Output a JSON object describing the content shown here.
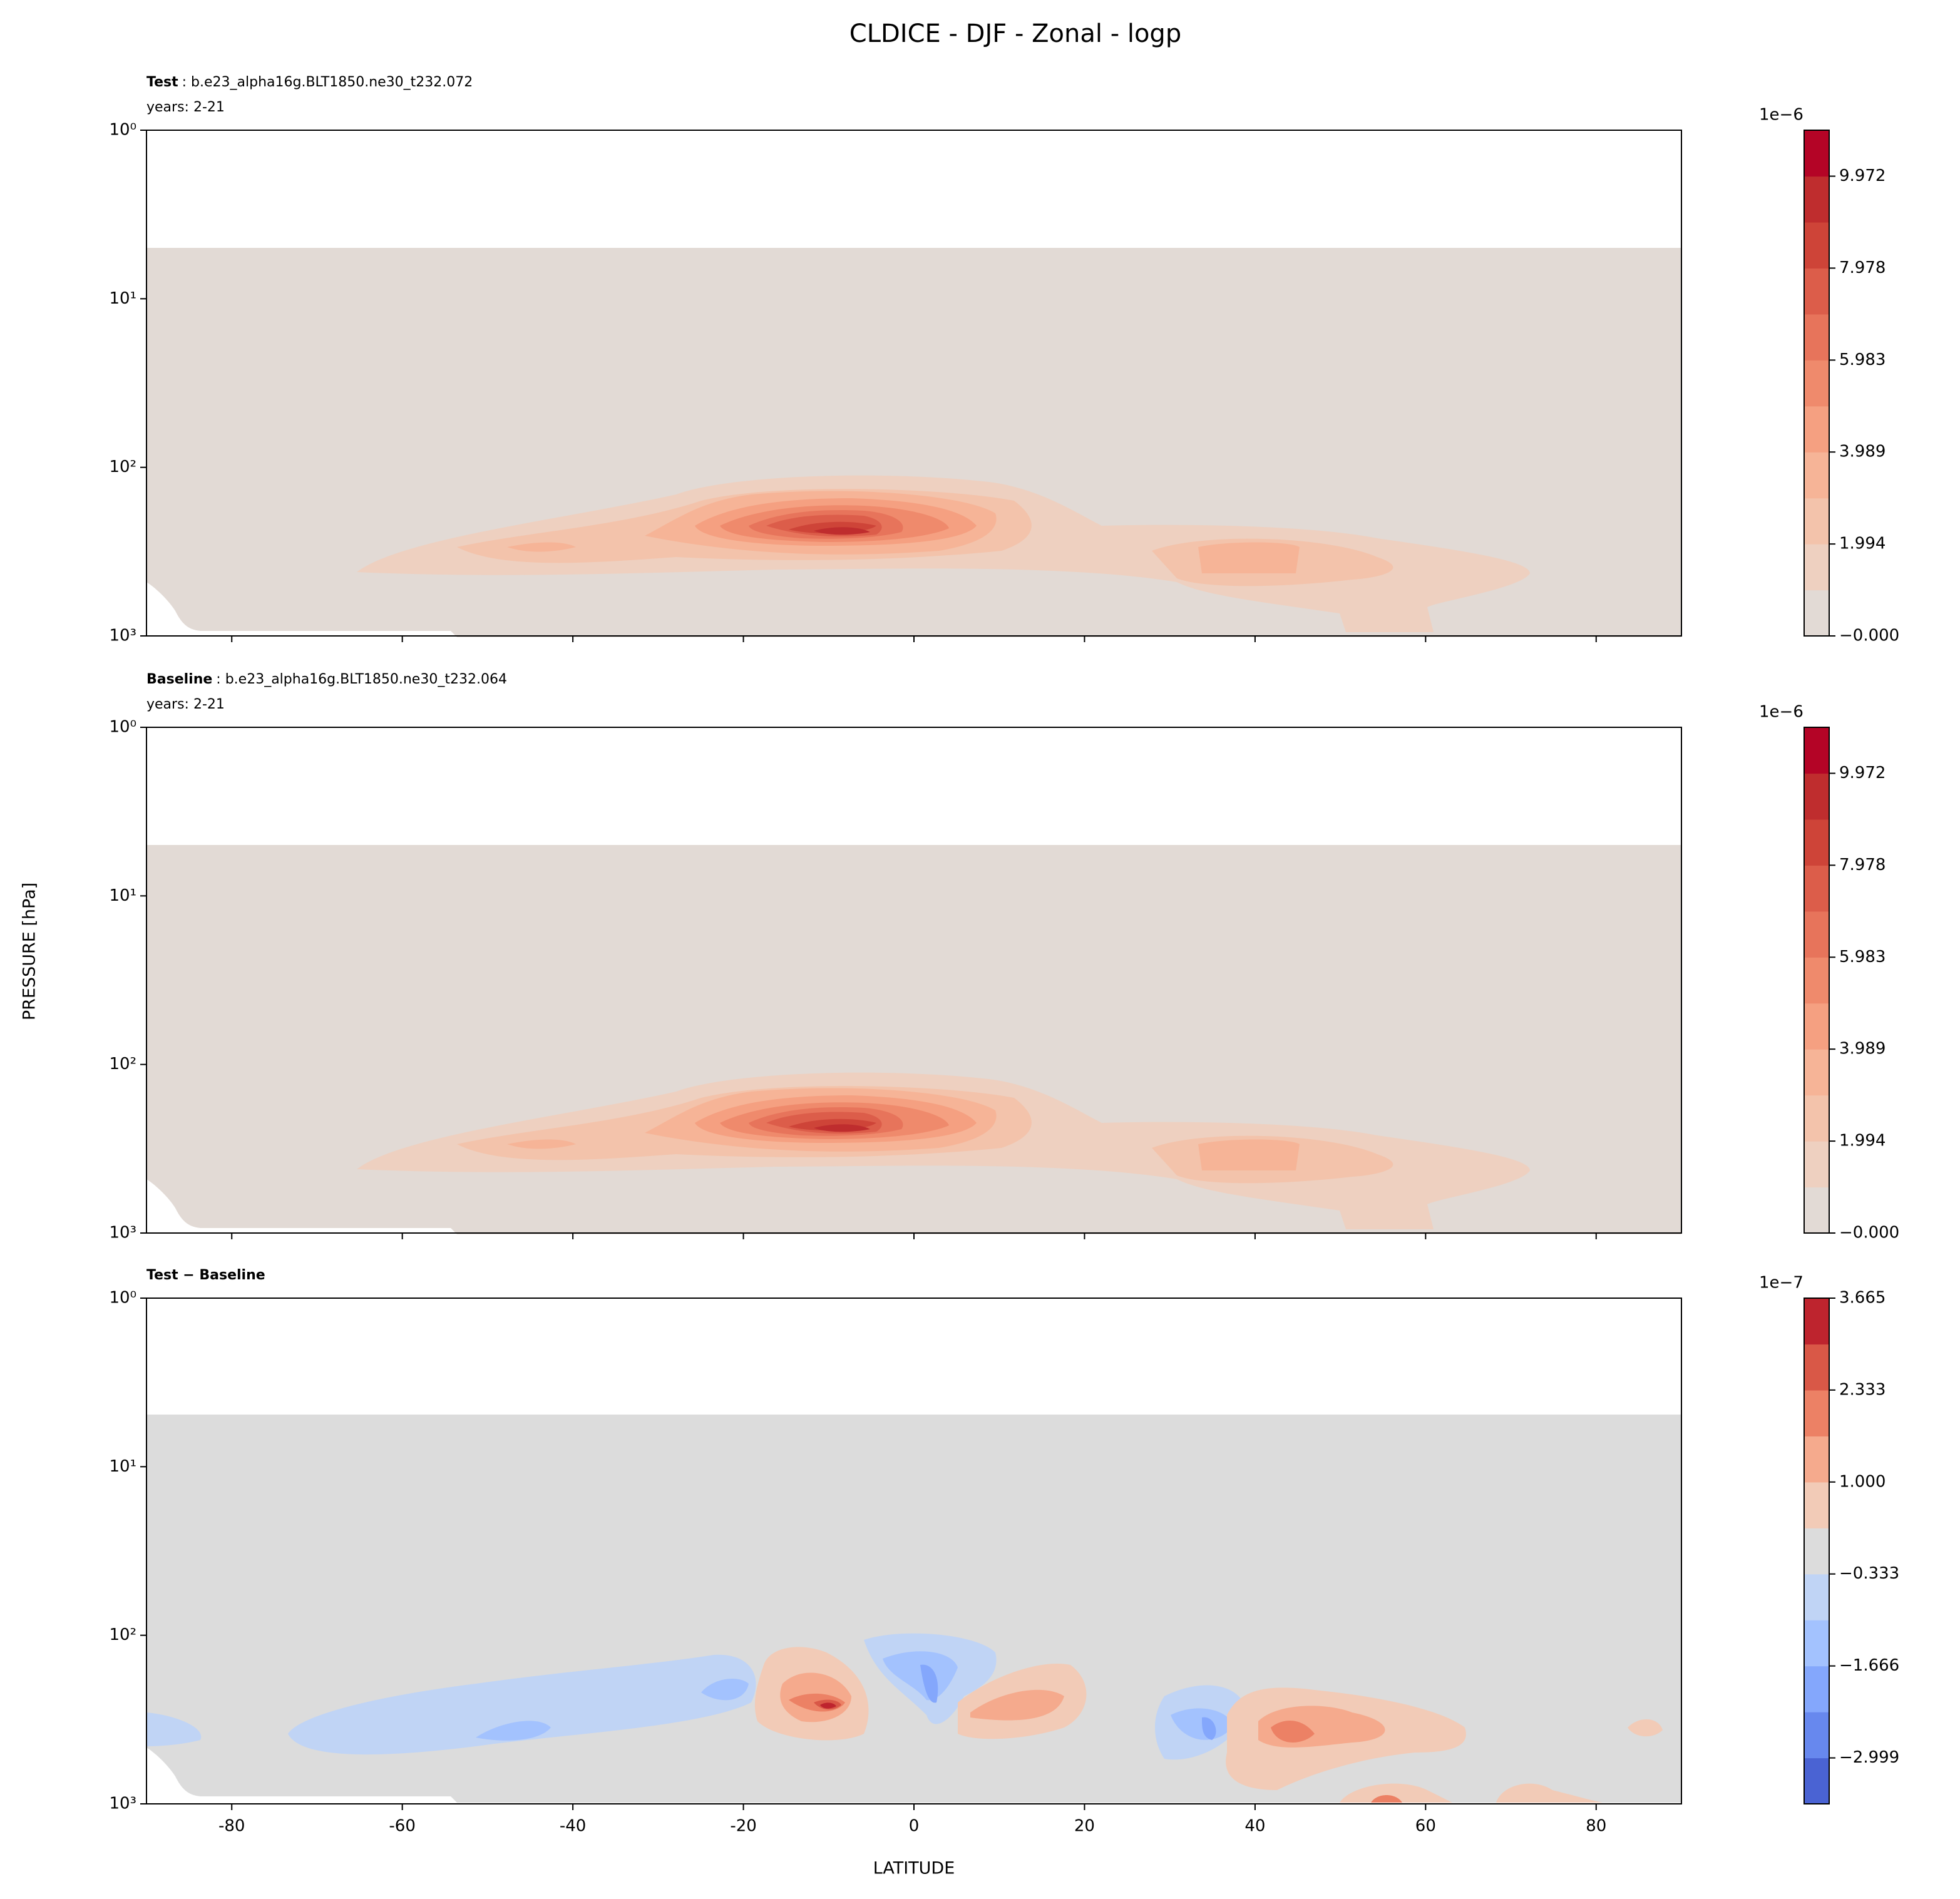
{
  "title": "CLDICE - DJF - Zonal - logp",
  "xlabel": "LATITUDE",
  "ylabel": "PRESSURE [hPa]",
  "chart_data": [
    {
      "type": "contour",
      "title_bold": "Test",
      "title": ": b.e23_alpha16g.BLT1850.ne30_t232.072",
      "subtitle": "years: 2-21",
      "xlim": [
        -90,
        90
      ],
      "xticks": [
        -80,
        -60,
        -40,
        -20,
        0,
        20,
        40,
        60,
        80
      ],
      "show_xticklabels": false,
      "ylim": [
        1000,
        1
      ],
      "log_y": true,
      "yticks": [
        {
          "value": 1,
          "label": "10⁰"
        },
        {
          "value": 10,
          "label": "10¹"
        },
        {
          "value": 100,
          "label": "10²"
        },
        {
          "value": 1000,
          "label": "10³"
        }
      ],
      "colorbar": {
        "offset_label": "1e−6",
        "clim": [
          0,
          10.97
        ],
        "ticks": [
          {
            "value": 0,
            "label": "−0.000"
          },
          1.994,
          3.989,
          5.983,
          7.978,
          9.972
        ],
        "colors": [
          "#e2dad5",
          "#eed0c0",
          "#f3c3ab",
          "#f6b497",
          "#f5a081",
          "#ef8a6c",
          "#e7745b",
          "#dc5d4a",
          "#ce4438",
          "#bf2d2e",
          "#b40426"
        ]
      }
    },
    {
      "type": "contour",
      "title_bold": "Baseline",
      "title": ": b.e23_alpha16g.BLT1850.ne30_t232.064",
      "subtitle": "years: 2-21",
      "xlim": [
        -90,
        90
      ],
      "xticks": [
        -80,
        -60,
        -40,
        -20,
        0,
        20,
        40,
        60,
        80
      ],
      "show_xticklabels": false,
      "ylim": [
        1000,
        1
      ],
      "log_y": true,
      "yticks": [
        {
          "value": 1,
          "label": "10⁰"
        },
        {
          "value": 10,
          "label": "10¹"
        },
        {
          "value": 100,
          "label": "10²"
        },
        {
          "value": 1000,
          "label": "10³"
        }
      ],
      "colorbar": {
        "offset_label": "1e−6",
        "clim": [
          0,
          10.97
        ],
        "ticks": [
          {
            "value": 0,
            "label": "−0.000"
          },
          1.994,
          3.989,
          5.983,
          7.978,
          9.972
        ],
        "colors": [
          "#e2dad5",
          "#eed0c0",
          "#f3c3ab",
          "#f6b497",
          "#f5a081",
          "#ef8a6c",
          "#e7745b",
          "#dc5d4a",
          "#ce4438",
          "#bf2d2e",
          "#b40426"
        ]
      }
    },
    {
      "type": "contour",
      "title_bold": "Test − Baseline",
      "xlim": [
        -90,
        90
      ],
      "xticks": [
        -80,
        -60,
        -40,
        -20,
        0,
        20,
        40,
        60,
        80
      ],
      "show_xticklabels": true,
      "ylim": [
        1000,
        1
      ],
      "log_y": true,
      "yticks": [
        {
          "value": 1,
          "label": "10⁰"
        },
        {
          "value": 10,
          "label": "10¹"
        },
        {
          "value": 100,
          "label": "10²"
        },
        {
          "value": 1000,
          "label": "10³"
        }
      ],
      "colorbar": {
        "offset_label": "1e−7",
        "clim": [
          -3.665,
          3.665
        ],
        "ticks": [
          -2.999,
          -1.666,
          -0.333,
          1.0,
          2.333,
          3.665
        ],
        "tick_labels": [
          "−2.999",
          "−1.666",
          "−0.333",
          "1.000",
          "2.333",
          "3.665"
        ],
        "colors": [
          "#4a63d3",
          "#6788ee",
          "#84a7fc",
          "#a3c2fe",
          "#c0d4f5",
          "#dcdcdc",
          "#f2cbb7",
          "#f5aa8d",
          "#ec8165",
          "#d95847",
          "#be242e"
        ]
      }
    }
  ]
}
